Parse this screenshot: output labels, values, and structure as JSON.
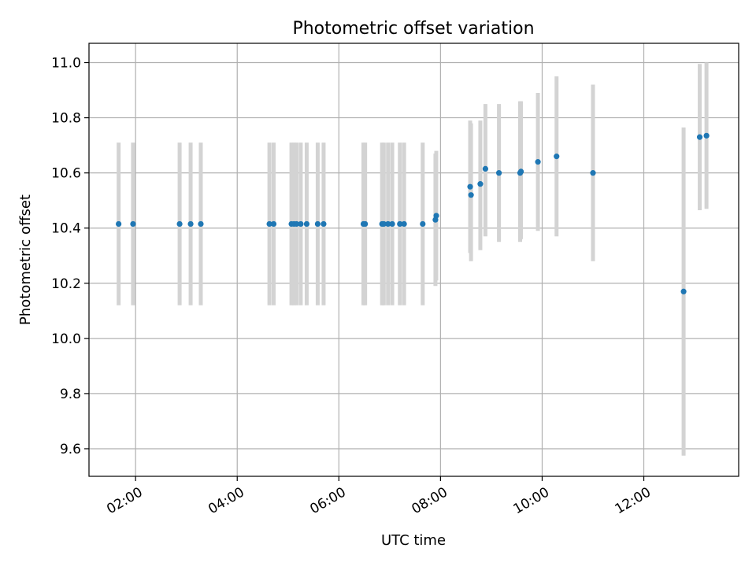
{
  "chart_data": {
    "type": "scatter",
    "title": "Photometric offset variation",
    "xlabel": "UTC time",
    "ylabel": "Photometric offset",
    "x_axis": "time",
    "xlim": [
      "01:05",
      "13:52"
    ],
    "ylim": [
      9.5,
      11.07
    ],
    "xticks": [
      "02:00",
      "04:00",
      "06:00",
      "08:00",
      "10:00",
      "12:00"
    ],
    "yticks": [
      "9.6",
      "9.8",
      "10.0",
      "10.2",
      "10.4",
      "10.6",
      "10.8",
      "11.0"
    ],
    "grid": true,
    "marker_color": "#1f77b4",
    "errorbar_color": "#d3d3d3",
    "series": [
      {
        "points": [
          {
            "x": "01:40",
            "y": 10.415,
            "ymin": 10.12,
            "ymax": 10.71
          },
          {
            "x": "01:57",
            "y": 10.415,
            "ymin": 10.12,
            "ymax": 10.71
          },
          {
            "x": "02:52",
            "y": 10.415,
            "ymin": 10.12,
            "ymax": 10.71
          },
          {
            "x": "03:05",
            "y": 10.415,
            "ymin": 10.12,
            "ymax": 10.71
          },
          {
            "x": "03:17",
            "y": 10.415,
            "ymin": 10.12,
            "ymax": 10.71
          },
          {
            "x": "04:38",
            "y": 10.415,
            "ymin": 10.12,
            "ymax": 10.71
          },
          {
            "x": "04:43",
            "y": 10.415,
            "ymin": 10.12,
            "ymax": 10.71
          },
          {
            "x": "05:04",
            "y": 10.415,
            "ymin": 10.12,
            "ymax": 10.71
          },
          {
            "x": "05:07",
            "y": 10.415,
            "ymin": 10.12,
            "ymax": 10.71
          },
          {
            "x": "05:10",
            "y": 10.415,
            "ymin": 10.12,
            "ymax": 10.71
          },
          {
            "x": "05:15",
            "y": 10.415,
            "ymin": 10.12,
            "ymax": 10.71
          },
          {
            "x": "05:22",
            "y": 10.415,
            "ymin": 10.12,
            "ymax": 10.71
          },
          {
            "x": "05:35",
            "y": 10.415,
            "ymin": 10.12,
            "ymax": 10.71
          },
          {
            "x": "05:42",
            "y": 10.415,
            "ymin": 10.12,
            "ymax": 10.71
          },
          {
            "x": "06:29",
            "y": 10.415,
            "ymin": 10.12,
            "ymax": 10.71
          },
          {
            "x": "06:31",
            "y": 10.415,
            "ymin": 10.12,
            "ymax": 10.71
          },
          {
            "x": "06:51",
            "y": 10.415,
            "ymin": 10.12,
            "ymax": 10.71
          },
          {
            "x": "06:53",
            "y": 10.415,
            "ymin": 10.12,
            "ymax": 10.71
          },
          {
            "x": "06:58",
            "y": 10.415,
            "ymin": 10.12,
            "ymax": 10.71
          },
          {
            "x": "07:03",
            "y": 10.415,
            "ymin": 10.12,
            "ymax": 10.71
          },
          {
            "x": "07:12",
            "y": 10.415,
            "ymin": 10.12,
            "ymax": 10.71
          },
          {
            "x": "07:17",
            "y": 10.415,
            "ymin": 10.12,
            "ymax": 10.71
          },
          {
            "x": "07:39",
            "y": 10.415,
            "ymin": 10.12,
            "ymax": 10.71
          },
          {
            "x": "07:54",
            "y": 10.43,
            "ymin": 10.19,
            "ymax": 10.67
          },
          {
            "x": "07:55",
            "y": 10.445,
            "ymin": 10.21,
            "ymax": 10.68
          },
          {
            "x": "08:35",
            "y": 10.55,
            "ymin": 10.31,
            "ymax": 10.79
          },
          {
            "x": "08:36",
            "y": 10.52,
            "ymin": 10.28,
            "ymax": 10.78
          },
          {
            "x": "08:47",
            "y": 10.56,
            "ymin": 10.32,
            "ymax": 10.79
          },
          {
            "x": "08:53",
            "y": 10.615,
            "ymin": 10.37,
            "ymax": 10.85
          },
          {
            "x": "09:09",
            "y": 10.6,
            "ymin": 10.35,
            "ymax": 10.85
          },
          {
            "x": "09:34",
            "y": 10.6,
            "ymin": 10.35,
            "ymax": 10.86
          },
          {
            "x": "09:35",
            "y": 10.605,
            "ymin": 10.36,
            "ymax": 10.86
          },
          {
            "x": "09:55",
            "y": 10.64,
            "ymin": 10.39,
            "ymax": 10.89
          },
          {
            "x": "10:17",
            "y": 10.66,
            "ymin": 10.37,
            "ymax": 10.95
          },
          {
            "x": "11:00",
            "y": 10.6,
            "ymin": 10.28,
            "ymax": 10.92
          },
          {
            "x": "12:47",
            "y": 10.17,
            "ymin": 9.575,
            "ymax": 10.765
          },
          {
            "x": "13:06",
            "y": 10.73,
            "ymin": 10.465,
            "ymax": 10.995
          },
          {
            "x": "13:14",
            "y": 10.735,
            "ymin": 10.47,
            "ymax": 11.0
          }
        ]
      }
    ]
  }
}
